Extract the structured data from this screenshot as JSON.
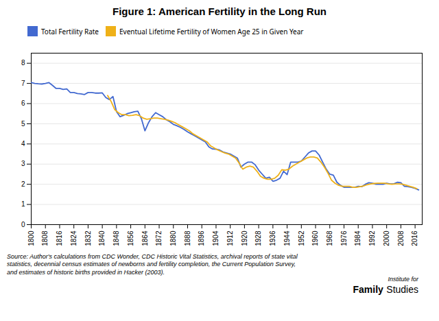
{
  "chart_data": {
    "type": "line",
    "title": "Figure 1: American Fertility in the Long Run",
    "annotations": [
      "Source: Author's calculations from CDC Wonder, CDC Historic Vital Statistics, archival reports of state vital\nstatistics, decennial census estimates of newborns and fertility completion, the Current Population Survey,\nand estimates of historic births provided in Hacker (2003).",
      "Institute for",
      "Family",
      "Studies"
    ],
    "xlim": [
      1800,
      2020
    ],
    "xticks": [
      1800,
      1808,
      1816,
      1824,
      1832,
      1840,
      1848,
      1856,
      1864,
      1872,
      1880,
      1888,
      1896,
      1904,
      1912,
      1920,
      1928,
      1936,
      1944,
      1952,
      1960,
      1968,
      1976,
      1984,
      1992,
      2000,
      2008,
      2016
    ],
    "ylim": [
      0,
      8.5
    ],
    "yticks": [
      0,
      1,
      2,
      3,
      4,
      5,
      6,
      7,
      8
    ],
    "grid": "y",
    "legend": "top",
    "series": [
      {
        "name": "Total Fertility Rate",
        "x": [
          1800,
          1802,
          1804,
          1806,
          1808,
          1810,
          1812,
          1814,
          1816,
          1818,
          1820,
          1822,
          1824,
          1826,
          1828,
          1830,
          1832,
          1834,
          1836,
          1838,
          1840,
          1842,
          1844,
          1846,
          1848,
          1850,
          1852,
          1854,
          1856,
          1858,
          1860,
          1862,
          1864,
          1866,
          1868,
          1870,
          1872,
          1874,
          1876,
          1878,
          1880,
          1882,
          1884,
          1886,
          1888,
          1890,
          1892,
          1894,
          1896,
          1898,
          1900,
          1902,
          1904,
          1906,
          1908,
          1910,
          1912,
          1914,
          1916,
          1918,
          1920,
          1922,
          1924,
          1926,
          1928,
          1930,
          1932,
          1934,
          1936,
          1938,
          1940,
          1942,
          1944,
          1946,
          1948,
          1950,
          1952,
          1954,
          1956,
          1958,
          1960,
          1962,
          1964,
          1966,
          1968,
          1970,
          1972,
          1974,
          1976,
          1978,
          1980,
          1982,
          1984,
          1986,
          1988,
          1990,
          1992,
          1994,
          1996,
          1998,
          2000,
          2002,
          2004,
          2006,
          2008,
          2010,
          2012,
          2014,
          2016,
          2018
        ],
        "values": [
          7.04,
          7.0,
          6.98,
          6.97,
          7.0,
          7.04,
          6.9,
          6.75,
          6.75,
          6.7,
          6.73,
          6.55,
          6.55,
          6.5,
          6.48,
          6.45,
          6.55,
          6.55,
          6.52,
          6.52,
          6.53,
          6.3,
          6.2,
          6.35,
          5.6,
          5.35,
          5.42,
          5.5,
          5.55,
          5.6,
          5.62,
          5.25,
          4.65,
          5.05,
          5.35,
          5.55,
          5.45,
          5.35,
          5.2,
          5.1,
          4.97,
          4.9,
          4.82,
          4.72,
          4.6,
          4.5,
          4.4,
          4.3,
          4.2,
          4.1,
          3.85,
          3.75,
          3.74,
          3.7,
          3.6,
          3.55,
          3.5,
          3.4,
          3.3,
          2.85,
          3.0,
          3.1,
          3.1,
          2.97,
          2.7,
          2.5,
          2.3,
          2.35,
          2.15,
          2.2,
          2.3,
          2.65,
          2.48,
          3.1,
          3.1,
          3.1,
          3.15,
          3.35,
          3.55,
          3.65,
          3.65,
          3.45,
          3.1,
          2.75,
          2.5,
          2.45,
          2.1,
          1.95,
          1.85,
          1.85,
          1.85,
          1.85,
          1.9,
          1.88,
          2.0,
          2.08,
          2.05,
          2.0,
          2.0,
          2.0,
          2.05,
          2.02,
          2.02,
          2.1,
          2.08,
          1.9,
          1.88,
          1.85,
          1.8,
          1.72
        ]
      },
      {
        "name": "Eventual Lifetime Fertility of Women Age 25 in Given Year",
        "x": [
          1843,
          1845,
          1847,
          1849,
          1851,
          1853,
          1855,
          1857,
          1859,
          1861,
          1863,
          1865,
          1867,
          1869,
          1871,
          1873,
          1875,
          1877,
          1879,
          1881,
          1883,
          1885,
          1887,
          1889,
          1891,
          1893,
          1895,
          1897,
          1899,
          1901,
          1903,
          1905,
          1907,
          1909,
          1911,
          1913,
          1915,
          1917,
          1919,
          1921,
          1923,
          1925,
          1927,
          1929,
          1931,
          1933,
          1935,
          1937,
          1939,
          1941,
          1943,
          1945,
          1947,
          1949,
          1951,
          1953,
          1955,
          1957,
          1959,
          1961,
          1963,
          1965,
          1967,
          1969,
          1971,
          1973,
          1975,
          1977,
          1979,
          1981,
          1983,
          1985,
          1987,
          1989,
          1991,
          1993,
          1995,
          1997,
          1999,
          2001,
          2003,
          2005,
          2007,
          2009,
          2011,
          2013,
          2015,
          2017
        ],
        "values": [
          6.4,
          6.1,
          5.7,
          5.55,
          5.45,
          5.45,
          5.4,
          5.42,
          5.45,
          5.4,
          5.28,
          5.22,
          5.25,
          5.28,
          5.28,
          5.25,
          5.22,
          5.18,
          5.12,
          5.05,
          4.95,
          4.85,
          4.75,
          4.65,
          4.5,
          4.4,
          4.3,
          4.2,
          4.1,
          3.9,
          3.8,
          3.7,
          3.62,
          3.55,
          3.5,
          3.4,
          3.3,
          3.05,
          2.75,
          2.85,
          2.9,
          2.85,
          2.65,
          2.4,
          2.3,
          2.25,
          2.25,
          2.3,
          2.45,
          2.72,
          2.7,
          2.75,
          2.9,
          3.0,
          3.1,
          3.2,
          3.3,
          3.35,
          3.35,
          3.3,
          3.1,
          2.85,
          2.55,
          2.2,
          2.05,
          1.95,
          1.9,
          1.9,
          1.9,
          1.85,
          1.85,
          1.88,
          1.92,
          1.98,
          2.02,
          2.04,
          2.05,
          2.05,
          2.05,
          2.02,
          2.0,
          2.02,
          2.02,
          2.0,
          1.95,
          1.9,
          1.85,
          1.78
        ]
      }
    ]
  }
}
